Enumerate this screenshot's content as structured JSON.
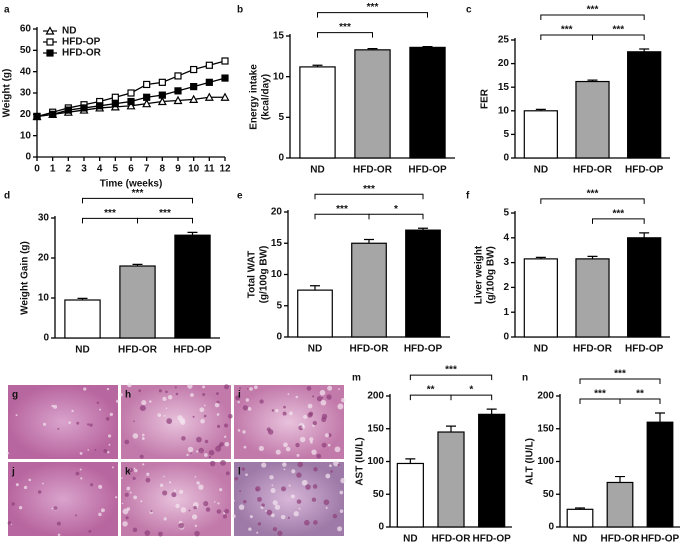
{
  "chart_data": [
    {
      "type": "line",
      "panel": "a",
      "ylabel": [
        "Weight (g)"
      ],
      "xlabel": "Time (weeks)",
      "x": [
        0,
        1,
        2,
        3,
        4,
        5,
        6,
        7,
        8,
        9,
        10,
        11,
        12
      ],
      "xlim": [
        0,
        12
      ],
      "xticks": [
        0,
        1,
        2,
        3,
        4,
        5,
        6,
        7,
        8,
        9,
        10,
        11,
        12
      ],
      "ylim": [
        0,
        60
      ],
      "yticks": [
        0,
        10,
        20,
        30,
        40,
        50,
        60
      ],
      "legend": "top-left",
      "series": [
        {
          "name": "ND",
          "color": "#000000",
          "marker": "triangle-open",
          "values": [
            19,
            20,
            21,
            22,
            23,
            23.5,
            24,
            25,
            26,
            26.5,
            27,
            28,
            28
          ]
        },
        {
          "name": "HFD-OP",
          "color": "#000000",
          "marker": "square-open",
          "values": [
            19,
            21,
            23,
            24.5,
            26,
            28,
            30,
            34,
            35,
            38,
            41,
            43,
            45
          ]
        },
        {
          "name": "HFD-OR",
          "color": "#000000",
          "marker": "square-filled",
          "values": [
            19,
            20,
            22,
            23,
            24,
            25,
            26,
            28,
            29,
            31,
            33,
            35,
            37
          ]
        }
      ]
    },
    {
      "type": "bar",
      "panel": "b",
      "ylabel": [
        "Energy intake",
        "(kcal/day)"
      ],
      "categories": [
        "ND",
        "HFD-OR",
        "HFD-OP"
      ],
      "values": [
        11.2,
        13.3,
        13.6
      ],
      "errors": [
        0.2,
        0.15,
        0.1
      ],
      "colors": [
        "#ffffff",
        "#a6a6a6",
        "#000000"
      ],
      "ylim": [
        0,
        15
      ],
      "yticks": [
        0,
        5,
        10,
        15
      ],
      "significance": [
        {
          "pair": [
            "ND",
            "HFD-OR"
          ],
          "label": "***"
        },
        {
          "pair": [
            "ND",
            "HFD-OP"
          ],
          "label": "***"
        }
      ]
    },
    {
      "type": "bar",
      "panel": "c",
      "ylabel": [
        "FER"
      ],
      "categories": [
        "ND",
        "HFD-OR",
        "HFD-OP"
      ],
      "values": [
        10,
        16.2,
        22.5
      ],
      "errors": [
        0.3,
        0.3,
        0.6
      ],
      "colors": [
        "#ffffff",
        "#a6a6a6",
        "#000000"
      ],
      "ylim": [
        0,
        25
      ],
      "yticks": [
        0,
        5,
        10,
        15,
        20,
        25
      ],
      "significance": [
        {
          "pair": [
            "ND",
            "HFD-OR"
          ],
          "label": "***"
        },
        {
          "pair": [
            "HFD-OR",
            "HFD-OP"
          ],
          "label": "***"
        },
        {
          "pair": [
            "ND",
            "HFD-OP"
          ],
          "label": "***"
        }
      ]
    },
    {
      "type": "bar",
      "panel": "d",
      "ylabel": [
        "Weight Gain (g)"
      ],
      "categories": [
        "ND",
        "HFD-OR",
        "HFD-OP"
      ],
      "values": [
        9.5,
        18,
        25.7
      ],
      "errors": [
        0.4,
        0.4,
        0.7
      ],
      "colors": [
        "#ffffff",
        "#a6a6a6",
        "#000000"
      ],
      "ylim": [
        0,
        30
      ],
      "yticks": [
        0,
        10,
        20,
        30
      ],
      "significance": [
        {
          "pair": [
            "ND",
            "HFD-OR"
          ],
          "label": "***"
        },
        {
          "pair": [
            "HFD-OR",
            "HFD-OP"
          ],
          "label": "***"
        },
        {
          "pair": [
            "ND",
            "HFD-OP"
          ],
          "label": "***"
        }
      ]
    },
    {
      "type": "bar",
      "panel": "e",
      "ylabel": [
        "Total WAT",
        "(g/100g BW)"
      ],
      "categories": [
        "ND",
        "HFD-OR",
        "HFD-OP"
      ],
      "values": [
        7.5,
        15,
        17.1
      ],
      "errors": [
        0.7,
        0.6,
        0.3
      ],
      "colors": [
        "#ffffff",
        "#a6a6a6",
        "#000000"
      ],
      "ylim": [
        0,
        20
      ],
      "yticks": [
        0,
        5,
        10,
        15,
        20
      ],
      "significance": [
        {
          "pair": [
            "ND",
            "HFD-OR"
          ],
          "label": "***"
        },
        {
          "pair": [
            "HFD-OR",
            "HFD-OP"
          ],
          "label": "*"
        },
        {
          "pair": [
            "ND",
            "HFD-OP"
          ],
          "label": "***"
        }
      ]
    },
    {
      "type": "bar",
      "panel": "f",
      "ylabel": [
        "Liver weight",
        "(g/100g BW)"
      ],
      "categories": [
        "ND",
        "HFD-OR",
        "HFD-OP"
      ],
      "values": [
        3.15,
        3.15,
        4.0
      ],
      "errors": [
        0.06,
        0.1,
        0.2
      ],
      "colors": [
        "#ffffff",
        "#a6a6a6",
        "#000000"
      ],
      "ylim": [
        0,
        5
      ],
      "yticks": [
        0,
        1,
        2,
        3,
        4,
        5
      ],
      "significance": [
        {
          "pair": [
            "HFD-OR",
            "HFD-OP"
          ],
          "label": "***"
        },
        {
          "pair": [
            "ND",
            "HFD-OP"
          ],
          "label": "***"
        }
      ]
    },
    {
      "type": "bar",
      "panel": "m",
      "ylabel": [
        "AST (IU/L)"
      ],
      "categories": [
        "ND",
        "HFD-OR",
        "HFD-OP"
      ],
      "values": [
        97,
        145,
        172
      ],
      "errors": [
        7,
        9,
        8
      ],
      "colors": [
        "#ffffff",
        "#a6a6a6",
        "#000000"
      ],
      "ylim": [
        0,
        200
      ],
      "yticks": [
        0,
        50,
        100,
        150,
        200
      ],
      "significance": [
        {
          "pair": [
            "ND",
            "HFD-OR"
          ],
          "label": "**"
        },
        {
          "pair": [
            "HFD-OR",
            "HFD-OP"
          ],
          "label": "*"
        },
        {
          "pair": [
            "ND",
            "HFD-OP"
          ],
          "label": "***"
        }
      ]
    },
    {
      "type": "bar",
      "panel": "n",
      "ylabel": [
        "ALT (IU/L)"
      ],
      "categories": [
        "ND",
        "HFD-OR",
        "HFD-OP"
      ],
      "values": [
        27,
        68,
        160
      ],
      "errors": [
        2,
        9,
        14
      ],
      "colors": [
        "#ffffff",
        "#a6a6a6",
        "#000000"
      ],
      "ylim": [
        0,
        200
      ],
      "yticks": [
        0,
        50,
        100,
        150,
        200
      ],
      "significance": [
        {
          "pair": [
            "ND",
            "HFD-OR"
          ],
          "label": "***"
        },
        {
          "pair": [
            "HFD-OR",
            "HFD-OP"
          ],
          "label": "**"
        },
        {
          "pair": [
            "ND",
            "HFD-OP"
          ],
          "label": "***"
        }
      ]
    }
  ],
  "images": [
    {
      "label": "g"
    },
    {
      "label": "h"
    },
    {
      "label": "i"
    },
    {
      "label": "j"
    },
    {
      "label": "k"
    },
    {
      "label": "l"
    }
  ]
}
